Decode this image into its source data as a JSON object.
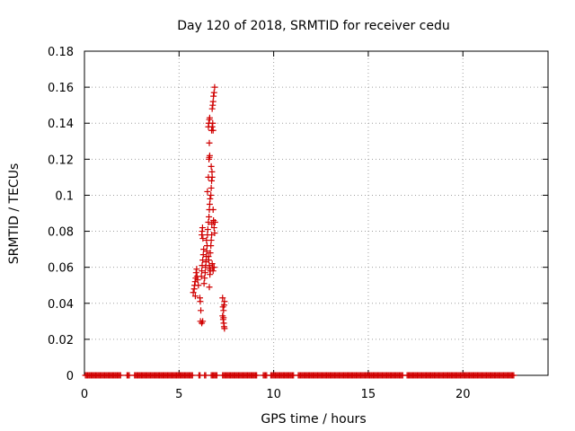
{
  "chart_data": {
    "type": "scatter",
    "title": "Day 120 of 2018, SRMTID for receiver cedu",
    "xlabel": "GPS time / hours",
    "ylabel": "SRMTID / TECUs",
    "xlim": [
      0,
      24.5
    ],
    "ylim": [
      0,
      0.18
    ],
    "xticks": [
      0,
      5,
      10,
      15,
      20
    ],
    "xtick_labels": [
      "0",
      "5",
      "10",
      "15",
      "20"
    ],
    "yticks": [
      0,
      0.02,
      0.04,
      0.06,
      0.08,
      0.1,
      0.12,
      0.14,
      0.16,
      0.18
    ],
    "ytick_labels": [
      "0",
      "0.02",
      "0.04",
      "0.06",
      "0.08",
      "0.1",
      "0.12",
      "0.14",
      "0.16",
      "0.18"
    ],
    "grid": true,
    "marker": "+",
    "color": "#d00000",
    "baseline": {
      "y": 0,
      "segments": [
        [
          0.05,
          1.95
        ],
        [
          2.25,
          2.4
        ],
        [
          2.65,
          5.75
        ],
        [
          6.05,
          6.15
        ],
        [
          6.35,
          6.45
        ],
        [
          6.7,
          7.0
        ],
        [
          7.3,
          9.1
        ],
        [
          9.45,
          9.65
        ],
        [
          9.85,
          11.1
        ],
        [
          11.3,
          16.85
        ],
        [
          17.05,
          22.7
        ]
      ],
      "step": 0.06
    },
    "series": [
      {
        "name": "SRMTID",
        "points": [
          [
            5.75,
            0.046
          ],
          [
            5.8,
            0.048
          ],
          [
            5.82,
            0.05
          ],
          [
            5.85,
            0.052
          ],
          [
            5.88,
            0.054
          ],
          [
            5.9,
            0.057
          ],
          [
            5.93,
            0.059
          ],
          [
            5.86,
            0.044
          ],
          [
            5.95,
            0.055
          ],
          [
            5.98,
            0.053
          ],
          [
            6.02,
            0.05
          ],
          [
            6.1,
            0.043
          ],
          [
            6.12,
            0.041
          ],
          [
            6.15,
            0.036
          ],
          [
            6.13,
            0.03
          ],
          [
            6.2,
            0.029
          ],
          [
            6.25,
            0.03
          ],
          [
            6.18,
            0.055
          ],
          [
            6.2,
            0.058
          ],
          [
            6.22,
            0.061
          ],
          [
            6.25,
            0.064
          ],
          [
            6.28,
            0.067
          ],
          [
            6.3,
            0.07
          ],
          [
            6.2,
            0.078
          ],
          [
            6.22,
            0.08
          ],
          [
            6.24,
            0.082
          ],
          [
            6.26,
            0.076
          ],
          [
            6.32,
            0.051
          ],
          [
            6.35,
            0.054
          ],
          [
            6.38,
            0.057
          ],
          [
            6.4,
            0.06
          ],
          [
            6.42,
            0.063
          ],
          [
            6.44,
            0.066
          ],
          [
            6.46,
            0.069
          ],
          [
            6.48,
            0.072
          ],
          [
            6.45,
            0.075
          ],
          [
            6.5,
            0.078
          ],
          [
            6.52,
            0.081
          ],
          [
            6.5,
            0.102
          ],
          [
            6.55,
            0.11
          ],
          [
            6.58,
            0.12
          ],
          [
            6.6,
            0.121
          ],
          [
            6.62,
            0.122
          ],
          [
            6.6,
            0.129
          ],
          [
            6.55,
            0.138
          ],
          [
            6.57,
            0.14
          ],
          [
            6.6,
            0.142
          ],
          [
            6.62,
            0.143
          ],
          [
            6.55,
            0.085
          ],
          [
            6.58,
            0.088
          ],
          [
            6.6,
            0.092
          ],
          [
            6.62,
            0.095
          ],
          [
            6.64,
            0.098
          ],
          [
            6.55,
            0.066
          ],
          [
            6.57,
            0.064
          ],
          [
            6.6,
            0.061
          ],
          [
            6.62,
            0.059
          ],
          [
            6.63,
            0.056
          ],
          [
            6.65,
            0.058
          ],
          [
            6.6,
            0.049
          ],
          [
            6.65,
            0.068
          ],
          [
            6.68,
            0.072
          ],
          [
            6.7,
            0.075
          ],
          [
            6.72,
            0.078
          ],
          [
            6.73,
            0.084
          ],
          [
            6.7,
            0.104
          ],
          [
            6.72,
            0.108
          ],
          [
            6.75,
            0.11
          ],
          [
            6.74,
            0.113
          ],
          [
            6.7,
            0.116
          ],
          [
            6.68,
            0.1
          ],
          [
            6.72,
            0.136
          ],
          [
            6.75,
            0.138
          ],
          [
            6.78,
            0.14
          ],
          [
            6.8,
            0.136
          ],
          [
            6.75,
            0.148
          ],
          [
            6.78,
            0.15
          ],
          [
            6.8,
            0.152
          ],
          [
            6.82,
            0.155
          ],
          [
            6.85,
            0.157
          ],
          [
            6.88,
            0.16
          ],
          [
            6.8,
            0.092
          ],
          [
            6.82,
            0.086
          ],
          [
            6.85,
            0.082
          ],
          [
            6.88,
            0.079
          ],
          [
            6.9,
            0.085
          ],
          [
            6.75,
            0.062
          ],
          [
            6.78,
            0.06
          ],
          [
            6.8,
            0.058
          ],
          [
            6.85,
            0.06
          ],
          [
            7.3,
            0.043
          ],
          [
            7.32,
            0.038
          ],
          [
            7.35,
            0.036
          ],
          [
            7.38,
            0.039
          ],
          [
            7.4,
            0.041
          ],
          [
            7.3,
            0.033
          ],
          [
            7.33,
            0.031
          ],
          [
            7.36,
            0.029
          ],
          [
            7.38,
            0.027
          ],
          [
            7.4,
            0.026
          ],
          [
            7.35,
            0.032
          ]
        ]
      }
    ]
  }
}
